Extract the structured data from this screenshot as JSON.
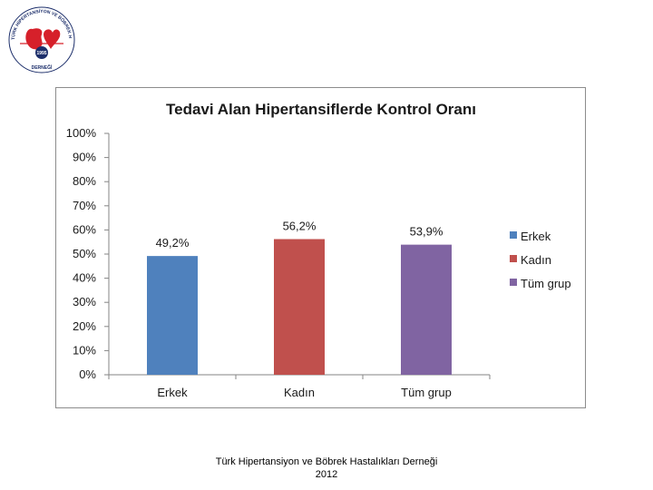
{
  "logo": {
    "text_top": "TÜRK HİPERTANSİYON VE BÖBREK HASTALIKLARI",
    "text_bottom": "DERNEĞİ",
    "year": "1995",
    "colors": {
      "red": "#d6202a",
      "navy": "#1d2f6b"
    }
  },
  "chart_data": {
    "type": "bar",
    "title": "Tedavi Alan Hipertansiflerde Kontrol Oranı",
    "categories": [
      "Erkek",
      "Kadın",
      "Tüm grup"
    ],
    "values": [
      49.2,
      56.2,
      53.9
    ],
    "value_labels": [
      "49,2%",
      "56,2%",
      "53,9%"
    ],
    "colors": [
      "#4f81bd",
      "#c0504d",
      "#8064a2"
    ],
    "legend": [
      "Erkek",
      "Kadın",
      "Tüm grup"
    ],
    "legend_position": "right",
    "ylim": [
      0,
      100
    ],
    "yticks": [
      "0%",
      "10%",
      "20%",
      "30%",
      "40%",
      "50%",
      "60%",
      "70%",
      "80%",
      "90%",
      "100%"
    ],
    "grid": false,
    "xlabel": "",
    "ylabel": ""
  },
  "footer": {
    "line1": "Türk Hipertansiyon ve Böbrek Hastalıkları Derneği",
    "line2": "2012"
  }
}
